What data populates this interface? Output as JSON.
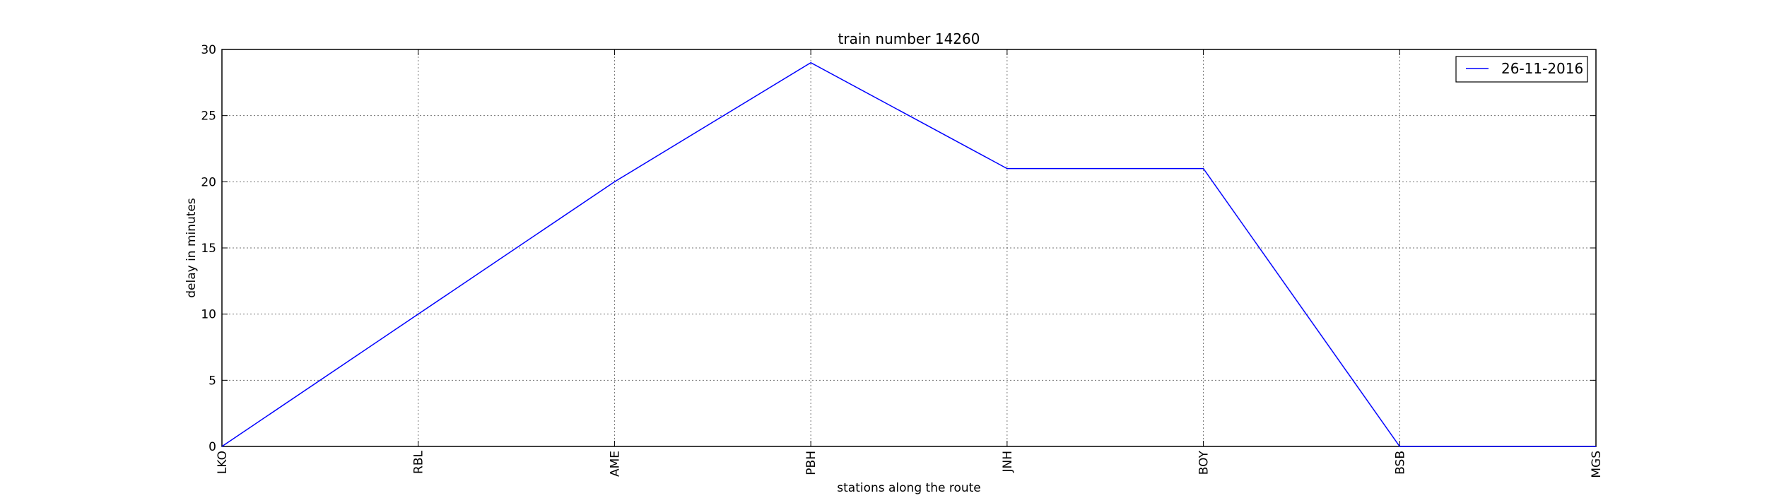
{
  "chart_data": {
    "type": "line",
    "title": "train number 14260",
    "xlabel": "stations along the route",
    "ylabel": "delay in minutes",
    "categories": [
      "LKO",
      "RBL",
      "AME",
      "PBH",
      "JNH",
      "BOY",
      "BSB",
      "MGS"
    ],
    "series": [
      {
        "name": "26-11-2016",
        "values": [
          0,
          10,
          20,
          29,
          21,
          21,
          0,
          0
        ],
        "color": "#0000ff"
      }
    ],
    "ylim": [
      0,
      30
    ],
    "yticks": [
      0,
      5,
      10,
      15,
      20,
      25,
      30
    ],
    "grid": true,
    "legend_position": "top-right"
  }
}
